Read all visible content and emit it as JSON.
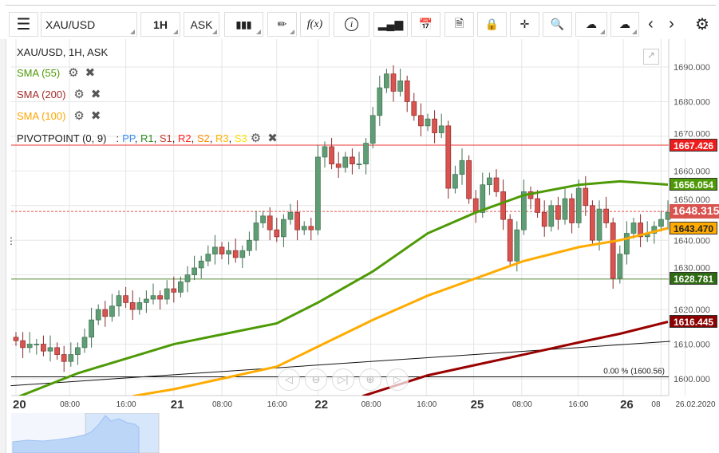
{
  "toolbar": {
    "symbol": "XAU/USD",
    "timeframe": "1H",
    "price_type": "ASK",
    "fx_label": "f(x)"
  },
  "legend": {
    "title": "XAU/USD, 1H, ASK",
    "sma55": "SMA (55)",
    "sma200": "SMA (200)",
    "sma100": "SMA (100)",
    "pivot": "PIVOTPOINT (0, 9)",
    "pivot_sep": ":",
    "pivot_items": [
      {
        "t": "PP",
        "c": "#3b8df0"
      },
      {
        "t": "R1",
        "c": "#2e8b20"
      },
      {
        "t": "S1",
        "c": "#c0392b"
      },
      {
        "t": "R2",
        "c": "#ff2020"
      },
      {
        "t": "S2",
        "c": "#ff8c00"
      },
      {
        "t": "R3",
        "c": "#ffb400"
      },
      {
        "t": "S3",
        "c": "#ffe000"
      }
    ]
  },
  "colors": {
    "up": "#5f9e75",
    "down": "#d9534f",
    "sma55": "#4e9a06",
    "sma100": "#ffab00",
    "sma200": "#990000",
    "r1": "#ee3333",
    "s1": "#5a8a3a"
  },
  "chart_data": {
    "type": "candlestick",
    "symbol": "XAU/USD",
    "y_ticks": [
      1690,
      1680,
      1670,
      1660,
      1650,
      1640,
      1630,
      1620,
      1610,
      1600
    ],
    "y_tick_labels": [
      "1690.000",
      "1680.000",
      "1670.000",
      "1660.000",
      "1650.000",
      "1640.000",
      "1630.000",
      "1620.000",
      "1610.000",
      "1600.000"
    ],
    "ylim": [
      1592,
      1705
    ],
    "x_labels": [
      {
        "t": "20",
        "big": true,
        "i": 0
      },
      {
        "t": "08:00",
        "i": 7.8
      },
      {
        "t": "16:00",
        "i": 16
      },
      {
        "t": "21",
        "big": true,
        "i": 23
      },
      {
        "t": "08:00",
        "i": 30
      },
      {
        "t": "16:00",
        "i": 38
      },
      {
        "t": "22",
        "big": true,
        "i": 44
      },
      {
        "t": "08:00",
        "i": 51.7
      },
      {
        "t": "16:00",
        "i": 59.8
      },
      {
        "t": "25",
        "big": true,
        "i": 66.7
      },
      {
        "t": "08:00",
        "i": 73.7
      },
      {
        "t": "16:00",
        "i": 81.9
      },
      {
        "t": "26",
        "big": true,
        "i": 88.5
      },
      {
        "t": "08",
        "i": 94
      },
      {
        "t": "26.02.2020",
        "i": 97.5
      }
    ],
    "first_open": 1612,
    "closes": [
      1611,
      1609,
      1610,
      1610,
      1608,
      1609,
      1607,
      1605,
      1607,
      1609,
      1612,
      1617,
      1620,
      1618,
      1621,
      1624,
      1622,
      1620,
      1622,
      1623,
      1624,
      1623,
      1626,
      1625,
      1628,
      1630,
      1632,
      1634,
      1636,
      1638,
      1636,
      1637,
      1635,
      1637,
      1640,
      1645,
      1647,
      1643,
      1641,
      1646,
      1648,
      1643,
      1644,
      1643,
      1664,
      1667,
      1662,
      1661,
      1664,
      1662,
      1662,
      1668,
      1676,
      1684,
      1688,
      1683,
      1686,
      1680,
      1676,
      1673,
      1675,
      1671,
      1673,
      1655,
      1659,
      1663,
      1652,
      1648,
      1656,
      1658,
      1654,
      1646,
      1634,
      1643,
      1654,
      1652,
      1648,
      1644,
      1650,
      1646,
      1652,
      1645,
      1655,
      1650,
      1640,
      1649,
      1645,
      1629,
      1636,
      1642,
      1645,
      1641,
      1642,
      1644,
      1646,
      1648
    ],
    "sma55": [
      [
        -1,
        1594
      ],
      [
        9,
        1601.6
      ],
      [
        23,
        1610
      ],
      [
        38,
        1616
      ],
      [
        44,
        1622
      ],
      [
        52,
        1631
      ],
      [
        60,
        1642
      ],
      [
        67,
        1648
      ],
      [
        74,
        1653
      ],
      [
        82,
        1656
      ],
      [
        88,
        1657
      ],
      [
        95,
        1656.05
      ]
    ],
    "sma100": [
      [
        17,
        1595
      ],
      [
        23,
        1597
      ],
      [
        38,
        1603.5
      ],
      [
        52,
        1617
      ],
      [
        60,
        1624
      ],
      [
        67,
        1629
      ],
      [
        74,
        1634
      ],
      [
        82,
        1638
      ],
      [
        88,
        1640
      ],
      [
        95,
        1643.47
      ]
    ],
    "sma200": [
      [
        50.5,
        1595
      ],
      [
        60,
        1601
      ],
      [
        74,
        1607
      ],
      [
        82,
        1610.5
      ],
      [
        88,
        1613
      ],
      [
        95,
        1616.45
      ]
    ],
    "trendline": [
      [
        -1,
        1598
      ],
      [
        95,
        1610.8
      ]
    ],
    "fib_line": {
      "value": 1600.56,
      "label": "0.00 % (1600.56)"
    },
    "levels": [
      {
        "name": "R1",
        "value": 1667.426,
        "label": "1667.426"
      },
      {
        "name": "S1",
        "value": 1628.781,
        "label": "1628.781"
      }
    ],
    "current_price": {
      "value": 1648.315,
      "label": "1648.315"
    },
    "sma_tags": {
      "sma55": "1656.054",
      "sma100": "1643.470",
      "sma200": "1616.445"
    }
  }
}
